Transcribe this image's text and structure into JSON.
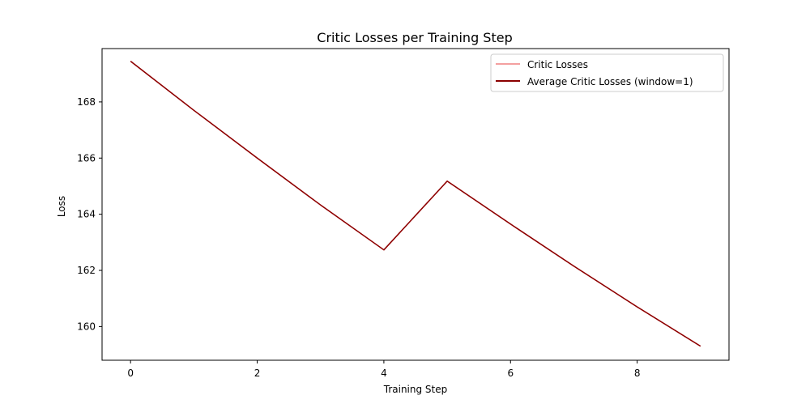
{
  "chart_data": {
    "type": "line",
    "title": "Critic Losses per Training Step",
    "xlabel": "Training Step",
    "ylabel": "Loss",
    "xlim": [
      -0.45,
      9.45
    ],
    "ylim": [
      158.8,
      169.9
    ],
    "xticks": [
      0,
      2,
      4,
      6,
      8
    ],
    "yticks": [
      160,
      162,
      164,
      166,
      168
    ],
    "x": [
      0,
      1,
      2,
      3,
      4,
      5,
      6,
      7,
      8,
      9
    ],
    "series": [
      {
        "name": "Critic Losses",
        "color": "#f08080",
        "values": [
          169.45,
          167.7,
          166.0,
          164.33,
          162.73,
          165.18,
          163.65,
          162.15,
          160.7,
          159.3
        ]
      },
      {
        "name": "Average Critic Losses (window=1)",
        "color": "#8b0000",
        "values": [
          169.45,
          167.7,
          166.0,
          164.33,
          162.73,
          165.18,
          163.65,
          162.15,
          160.7,
          159.3
        ]
      }
    ],
    "legend_position": "upper right",
    "grid": false
  }
}
